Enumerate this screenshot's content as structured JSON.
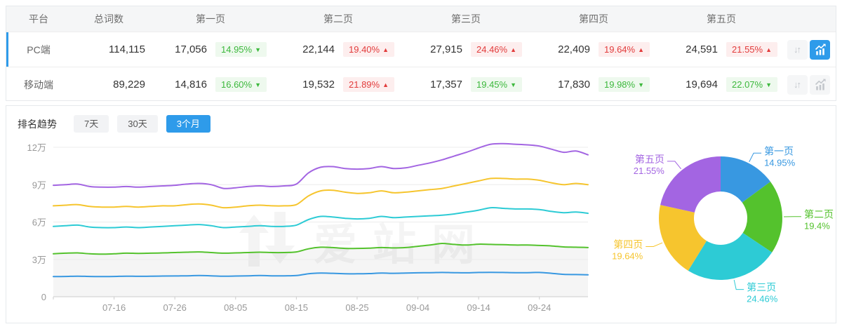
{
  "colors": {
    "accent_blue": "#2e9bea",
    "up_red": "#e23c3c",
    "up_red_bg": "#fdeeee",
    "down_green": "#3cb83c",
    "down_green_bg": "#eef9ee",
    "page1_blue": "#3898e1",
    "page2_green": "#54c22d",
    "page3_cyan": "#2dcbd5",
    "page4_yellow": "#f6c52e",
    "page5_purple": "#a365e2",
    "axis_text": "#999999",
    "grid_line": "#ececec",
    "axis_line": "#cccccc"
  },
  "table": {
    "headers": {
      "platform": "平台",
      "total": "总词数",
      "p1": "第一页",
      "p2": "第二页",
      "p3": "第三页",
      "p4": "第四页",
      "p5": "第五页"
    },
    "icons": {
      "sort": "↓↑",
      "chart": "trend-line-with-bars",
      "arrow_up": "▲",
      "arrow_down": "▼"
    },
    "rows": [
      {
        "platform": "PC端",
        "total": "114,115",
        "active": true,
        "pages": [
          {
            "count": "17,056",
            "pct": "14.95%",
            "dir": "down"
          },
          {
            "count": "22,144",
            "pct": "19.40%",
            "dir": "up"
          },
          {
            "count": "27,915",
            "pct": "24.46%",
            "dir": "up"
          },
          {
            "count": "22,409",
            "pct": "19.64%",
            "dir": "up"
          },
          {
            "count": "24,591",
            "pct": "21.55%",
            "dir": "up"
          }
        ]
      },
      {
        "platform": "移动端",
        "total": "89,229",
        "active": false,
        "pages": [
          {
            "count": "14,816",
            "pct": "16.60%",
            "dir": "down"
          },
          {
            "count": "19,532",
            "pct": "21.89%",
            "dir": "up"
          },
          {
            "count": "17,357",
            "pct": "19.45%",
            "dir": "down"
          },
          {
            "count": "17,830",
            "pct": "19.98%",
            "dir": "down"
          },
          {
            "count": "19,694",
            "pct": "22.07%",
            "dir": "down"
          }
        ]
      }
    ]
  },
  "trend": {
    "title": "排名趋势",
    "tabs": [
      {
        "label": "7天",
        "active": false
      },
      {
        "label": "30天",
        "active": false
      },
      {
        "label": "3个月",
        "active": true
      }
    ],
    "watermark": "爱站网"
  },
  "chart_data": [
    {
      "type": "line",
      "title": "排名趋势 3个月 (cumulative keyword counts, unit 万 = 10,000)",
      "x_ticks": [
        {
          "i": 5,
          "label": "07-16"
        },
        {
          "i": 10,
          "label": "07-26"
        },
        {
          "i": 15,
          "label": "08-05"
        },
        {
          "i": 20,
          "label": "08-15"
        },
        {
          "i": 25,
          "label": "08-25"
        },
        {
          "i": 30,
          "label": "09-04"
        },
        {
          "i": 35,
          "label": "09-14"
        },
        {
          "i": 40,
          "label": "09-24"
        }
      ],
      "y_ticks": [
        {
          "v": 0,
          "label": "0"
        },
        {
          "v": 3,
          "label": "3万"
        },
        {
          "v": 6,
          "label": "6万"
        },
        {
          "v": 9,
          "label": "9万"
        },
        {
          "v": 12,
          "label": "12万"
        }
      ],
      "ylim": [
        0,
        12.8
      ],
      "grid": "horizontal",
      "legend": "none",
      "area_fill_series": "第二页",
      "series": [
        {
          "name": "第一页",
          "color": "#3898e1",
          "values": [
            1.62,
            1.63,
            1.65,
            1.63,
            1.62,
            1.63,
            1.65,
            1.64,
            1.65,
            1.66,
            1.67,
            1.68,
            1.7,
            1.68,
            1.65,
            1.66,
            1.68,
            1.7,
            1.68,
            1.68,
            1.7,
            1.85,
            1.9,
            1.88,
            1.85,
            1.84,
            1.86,
            1.9,
            1.88,
            1.9,
            1.92,
            1.93,
            1.95,
            1.93,
            1.92,
            1.95,
            1.96,
            1.95,
            1.93,
            1.93,
            1.95,
            1.88,
            1.8,
            1.78,
            1.76
          ]
        },
        {
          "name": "第二页",
          "color": "#54c22d",
          "values": [
            3.45,
            3.5,
            3.52,
            3.45,
            3.42,
            3.45,
            3.5,
            3.48,
            3.5,
            3.52,
            3.55,
            3.58,
            3.6,
            3.55,
            3.5,
            3.52,
            3.55,
            3.58,
            3.55,
            3.55,
            3.6,
            3.85,
            3.98,
            3.95,
            3.88,
            3.88,
            3.9,
            3.95,
            3.92,
            3.95,
            4.05,
            4.15,
            4.28,
            4.2,
            4.15,
            4.22,
            4.2,
            4.18,
            4.15,
            4.15,
            4.12,
            4.08,
            4.0,
            3.98,
            3.95
          ]
        },
        {
          "name": "第三页",
          "color": "#2dcbd5",
          "values": [
            5.65,
            5.7,
            5.75,
            5.6,
            5.55,
            5.55,
            5.6,
            5.55,
            5.6,
            5.65,
            5.7,
            5.75,
            5.8,
            5.7,
            5.55,
            5.6,
            5.65,
            5.7,
            5.65,
            5.65,
            5.75,
            6.2,
            6.45,
            6.4,
            6.3,
            6.25,
            6.3,
            6.45,
            6.35,
            6.4,
            6.45,
            6.5,
            6.55,
            6.65,
            6.8,
            6.95,
            7.15,
            7.1,
            7.05,
            7.05,
            7.0,
            6.85,
            6.75,
            6.8,
            6.7
          ]
        },
        {
          "name": "第四页",
          "color": "#f6c52e",
          "values": [
            7.3,
            7.35,
            7.4,
            7.25,
            7.2,
            7.2,
            7.25,
            7.2,
            7.25,
            7.3,
            7.3,
            7.4,
            7.45,
            7.35,
            7.15,
            7.2,
            7.3,
            7.35,
            7.3,
            7.3,
            7.4,
            8.1,
            8.5,
            8.55,
            8.4,
            8.3,
            8.35,
            8.5,
            8.35,
            8.4,
            8.5,
            8.6,
            8.7,
            8.9,
            9.1,
            9.3,
            9.5,
            9.5,
            9.45,
            9.45,
            9.35,
            9.15,
            9.0,
            9.1,
            9.0
          ]
        },
        {
          "name": "第五页",
          "color": "#a365e2",
          "values": [
            8.95,
            9.0,
            9.05,
            8.85,
            8.8,
            8.8,
            8.85,
            8.8,
            8.85,
            8.9,
            8.95,
            9.05,
            9.1,
            9.0,
            8.7,
            8.75,
            8.85,
            8.9,
            8.85,
            8.9,
            9.05,
            9.95,
            10.4,
            10.45,
            10.3,
            10.25,
            10.3,
            10.45,
            10.3,
            10.35,
            10.55,
            10.75,
            11.0,
            11.3,
            11.6,
            11.95,
            12.25,
            12.3,
            12.25,
            12.2,
            12.1,
            11.85,
            11.6,
            11.7,
            11.4
          ]
        }
      ]
    },
    {
      "type": "pie",
      "donut": true,
      "labels": [
        "第一页",
        "第二页",
        "第三页",
        "第四页",
        "第五页"
      ],
      "values": [
        14.95,
        19.4,
        24.46,
        19.64,
        21.55
      ],
      "display_labels": [
        "14.95%",
        "19.4%",
        "24.46%",
        "19.64%",
        "21.55%"
      ],
      "colors": [
        "#3898e1",
        "#54c22d",
        "#2dcbd5",
        "#f6c52e",
        "#a365e2"
      ],
      "legend": "outside-labels-with-leader-lines"
    }
  ]
}
